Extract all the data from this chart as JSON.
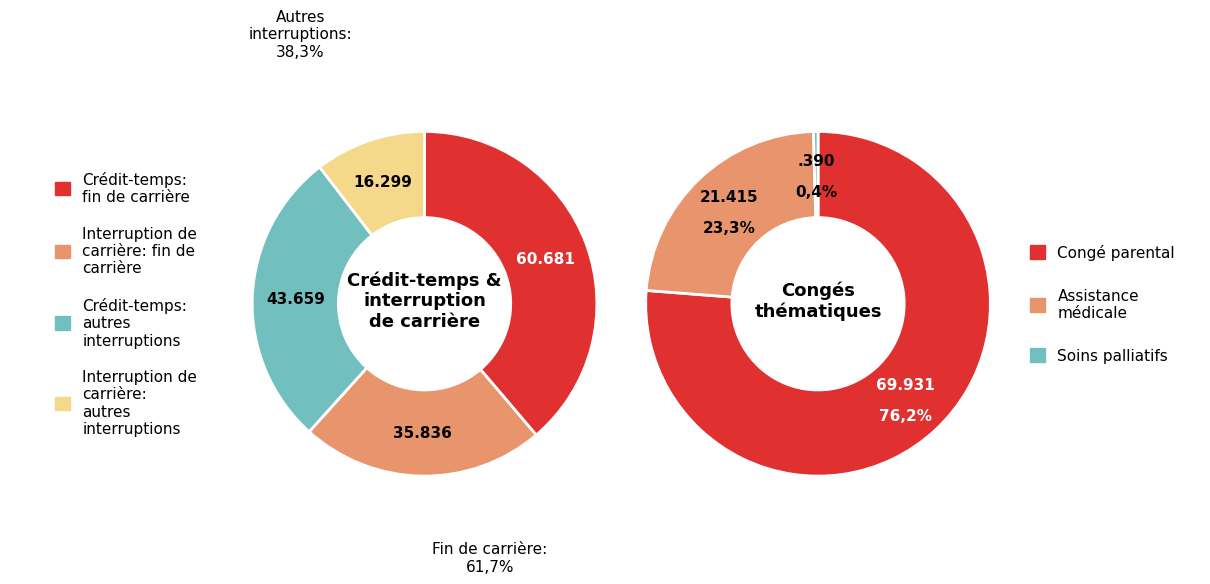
{
  "chart1": {
    "title": "Crédit-temps &\ninterruption\nde carrière",
    "values": [
      60.681,
      35.836,
      43.659,
      16.299
    ],
    "colors": [
      "#e03030",
      "#e8956d",
      "#72bfc0",
      "#f5d98a"
    ],
    "labels": [
      "60.681",
      "35.836",
      "43.659",
      "16.299"
    ],
    "legend_labels": [
      "Crédit-temps:\nfin de carrière",
      "Interruption de\ncarrière: fin de\ncarrière",
      "Crédit-temps:\nautres\ninterruptions",
      "Interruption de\ncarrière:\nautres\ninterruptions"
    ],
    "label_colors": [
      "white",
      "black",
      "black",
      "black"
    ],
    "startangle": 90,
    "ann_fin_carriere": "Fin de carrière:\n61,7%",
    "ann_autres": "Autres\ninterruptions:\n38,3%"
  },
  "chart2": {
    "title": "Congés\nthématiques",
    "values": [
      69.931,
      21.415,
      0.39
    ],
    "colors": [
      "#e03030",
      "#e8956d",
      "#72bfc0"
    ],
    "labels_line1": [
      "69.931",
      "21.415",
      ".390"
    ],
    "labels_line2": [
      "76,2%",
      "23,3%",
      "0,4%"
    ],
    "legend_labels": [
      "Congé parental",
      "Assistance\nmédicale",
      "Soins palliatifs"
    ],
    "label_colors": [
      "white",
      "black",
      "black"
    ],
    "startangle": 90
  },
  "bg_color": "#ffffff",
  "font_size_labels": 11,
  "font_size_title": 13,
  "font_size_legend": 11,
  "font_size_ann": 11
}
